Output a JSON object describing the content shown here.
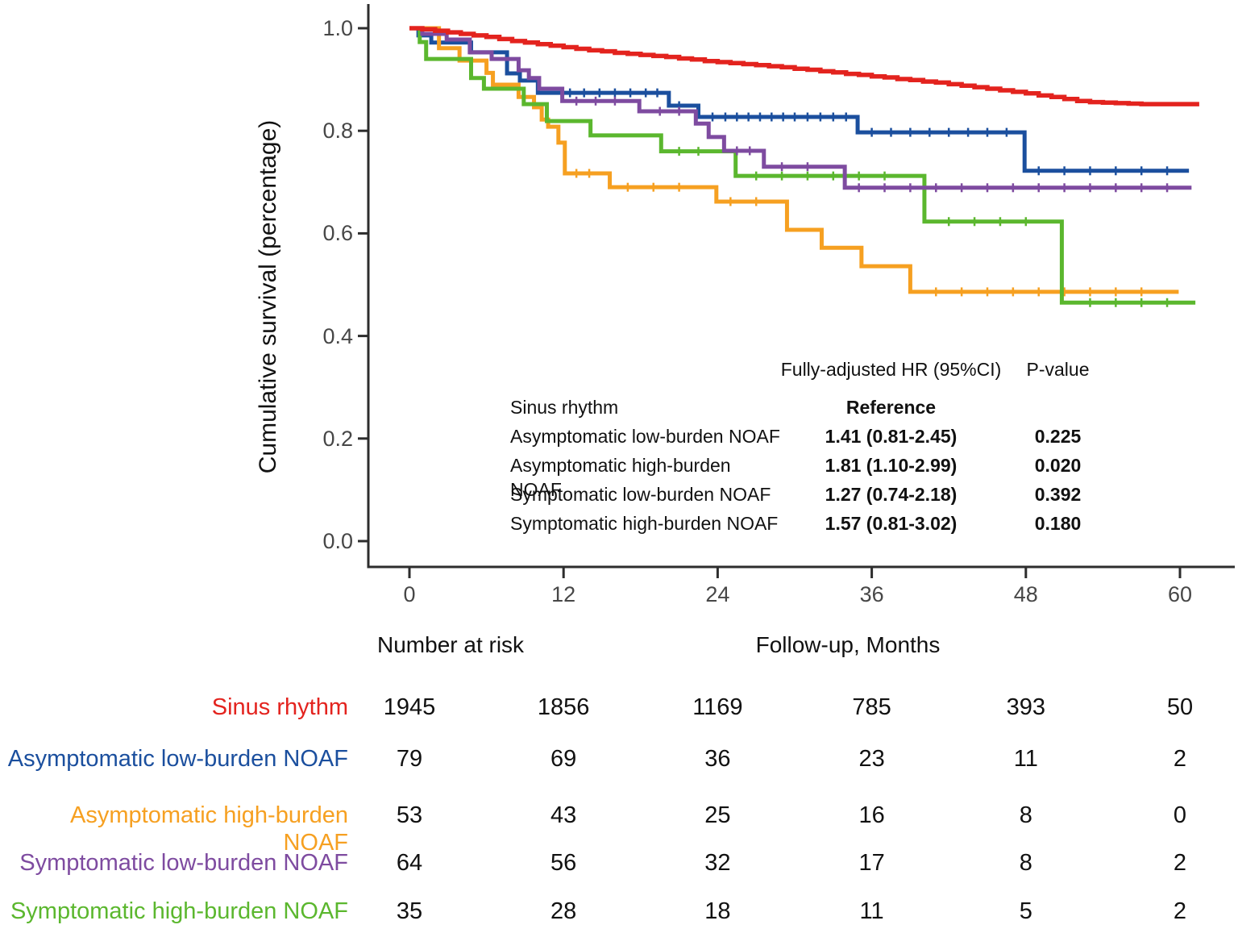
{
  "colors": {
    "axis": "#2d2d2d",
    "sinus": "#e3231e",
    "asym_low": "#1b4f9e",
    "asym_high": "#f6a021",
    "sym_low": "#7e4ba0",
    "sym_high": "#5bb72e"
  },
  "y_axis": {
    "label": "Cumulative survival (percentage)",
    "ticks": [
      {
        "label": "1.0",
        "value": 1.0
      },
      {
        "label": "0.8",
        "value": 0.8
      },
      {
        "label": "0.6",
        "value": 0.6
      },
      {
        "label": "0.4",
        "value": 0.4
      },
      {
        "label": "0.2",
        "value": 0.2
      },
      {
        "label": "0.0",
        "value": 0.0
      }
    ]
  },
  "x_axis": {
    "label": "Follow-up, Months",
    "ticks": [
      {
        "label": "0",
        "value": 0
      },
      {
        "label": "12",
        "value": 12
      },
      {
        "label": "24",
        "value": 24
      },
      {
        "label": "36",
        "value": 36
      },
      {
        "label": "48",
        "value": 48
      },
      {
        "label": "60",
        "value": 60
      }
    ]
  },
  "stats_table": {
    "hr_header": "Fully-adjusted HR (95%CI)",
    "p_header": "P-value",
    "rows": [
      {
        "label": "Sinus rhythm",
        "hr": "Reference",
        "p": ""
      },
      {
        "label": "Asymptomatic low-burden NOAF",
        "hr": "1.41 (0.81-2.45)",
        "p": "0.225"
      },
      {
        "label": "Asymptomatic high-burden NOAF",
        "hr": "1.81 (1.10-2.99)",
        "p": "0.020"
      },
      {
        "label": "Symptomatic low-burden NOAF",
        "hr": "1.27 (0.74-2.18)",
        "p": "0.392"
      },
      {
        "label": "Symptomatic high-burden NOAF",
        "hr": "1.57 (0.81-3.02)",
        "p": "0.180"
      }
    ]
  },
  "risk_table": {
    "title": "Number at risk",
    "time_points": [
      0,
      12,
      24,
      36,
      48,
      60
    ],
    "rows": [
      {
        "label": "Sinus rhythm",
        "series": "sinus",
        "counts": [
          "1945",
          "1856",
          "1169",
          "785",
          "393",
          "50"
        ]
      },
      {
        "label": "Asymptomatic low-burden NOAF",
        "series": "asym_low",
        "counts": [
          "79",
          "69",
          "36",
          "23",
          "11",
          "2"
        ]
      },
      {
        "label": "Asymptomatic high-burden NOAF",
        "series": "asym_high",
        "counts": [
          "53",
          "43",
          "25",
          "16",
          "8",
          "0"
        ]
      },
      {
        "label": "Symptomatic low-burden NOAF",
        "series": "sym_low",
        "counts": [
          "64",
          "56",
          "32",
          "17",
          "8",
          "2"
        ]
      },
      {
        "label": "Symptomatic high-burden NOAF",
        "series": "sym_high",
        "counts": [
          "35",
          "28",
          "18",
          "11",
          "5",
          "2"
        ]
      }
    ]
  },
  "chart_data": {
    "type": "line",
    "subtype": "kaplan-meier-step",
    "title": "",
    "xlabel": "Follow-up, Months",
    "ylabel": "Cumulative survival (percentage)",
    "xlim": [
      0,
      62
    ],
    "ylim": [
      0,
      1.02
    ],
    "x_ticks": [
      0,
      12,
      24,
      36,
      48,
      60
    ],
    "y_ticks": [
      0,
      0.2,
      0.4,
      0.6,
      0.8,
      1.0
    ],
    "grid": false,
    "legend_position": "none (identified via risk table and stats inset)",
    "series": [
      {
        "key": "sinus",
        "name": "Sinus rhythm",
        "color": "#e3231e",
        "line_width": 5.5,
        "end": 61.5,
        "points": [
          [
            0,
            1.0
          ],
          [
            1,
            0.998
          ],
          [
            2,
            0.995
          ],
          [
            3,
            0.992
          ],
          [
            4,
            0.989
          ],
          [
            5,
            0.986
          ],
          [
            6,
            0.983
          ],
          [
            7,
            0.979
          ],
          [
            8,
            0.975
          ],
          [
            9,
            0.972
          ],
          [
            10,
            0.969
          ],
          [
            11,
            0.966
          ],
          [
            12,
            0.963
          ],
          [
            13,
            0.96
          ],
          [
            14,
            0.957
          ],
          [
            15,
            0.955
          ],
          [
            16,
            0.952
          ],
          [
            17,
            0.95
          ],
          [
            18,
            0.948
          ],
          [
            19,
            0.946
          ],
          [
            20,
            0.944
          ],
          [
            21,
            0.941
          ],
          [
            22,
            0.939
          ],
          [
            23,
            0.936
          ],
          [
            24,
            0.934
          ],
          [
            25,
            0.932
          ],
          [
            26,
            0.93
          ],
          [
            27,
            0.928
          ],
          [
            28,
            0.926
          ],
          [
            29,
            0.924
          ],
          [
            30,
            0.921
          ],
          [
            31,
            0.919
          ],
          [
            32,
            0.916
          ],
          [
            33,
            0.914
          ],
          [
            34,
            0.911
          ],
          [
            35,
            0.909
          ],
          [
            36,
            0.906
          ],
          [
            37,
            0.904
          ],
          [
            38,
            0.901
          ],
          [
            39,
            0.899
          ],
          [
            40,
            0.896
          ],
          [
            41,
            0.894
          ],
          [
            42,
            0.891
          ],
          [
            43,
            0.888
          ],
          [
            44,
            0.885
          ],
          [
            45,
            0.882
          ],
          [
            46,
            0.879
          ],
          [
            47,
            0.876
          ],
          [
            48,
            0.873
          ],
          [
            49,
            0.869
          ],
          [
            50,
            0.866
          ],
          [
            51,
            0.862
          ],
          [
            52,
            0.858
          ],
          [
            53,
            0.856
          ],
          [
            54,
            0.855
          ],
          [
            55,
            0.854
          ],
          [
            56,
            0.853
          ],
          [
            57,
            0.852
          ],
          [
            58,
            0.852
          ],
          [
            59,
            0.852
          ],
          [
            60,
            0.852
          ]
        ],
        "censor_ticks": []
      },
      {
        "key": "asym_low",
        "name": "Asymptomatic low-burden NOAF",
        "color": "#1b4f9e",
        "line_width": 5,
        "end": 60.7,
        "points": [
          [
            0,
            1.0
          ],
          [
            0.7,
            0.986
          ],
          [
            1.7,
            0.972
          ],
          [
            4.8,
            0.953
          ],
          [
            7.6,
            0.912
          ],
          [
            8.6,
            0.898
          ],
          [
            10.0,
            0.874
          ],
          [
            20.2,
            0.849
          ],
          [
            22.5,
            0.827
          ],
          [
            34.9,
            0.797
          ],
          [
            47.9,
            0.722
          ]
        ],
        "censor_ticks": [
          12.5,
          13.6,
          14.8,
          16,
          17.2,
          18.4,
          19.3,
          21,
          23.6,
          24.6,
          25.5,
          26.4,
          27.3,
          28.2,
          29.1,
          30,
          31,
          32,
          33,
          34,
          36,
          37.5,
          39,
          40.5,
          42,
          43.5,
          45,
          46.5,
          49,
          51,
          53,
          55,
          57,
          59
        ]
      },
      {
        "key": "asym_high",
        "name": "Asymptomatic high-burden NOAF",
        "color": "#f6a021",
        "line_width": 5,
        "end": 59.9,
        "points": [
          [
            0,
            1.0
          ],
          [
            2.3,
            0.961
          ],
          [
            3.9,
            0.937
          ],
          [
            6.0,
            0.913
          ],
          [
            6.5,
            0.89
          ],
          [
            8.5,
            0.866
          ],
          [
            9.7,
            0.846
          ],
          [
            10.3,
            0.822
          ],
          [
            10.8,
            0.808
          ],
          [
            11.6,
            0.777
          ],
          [
            12.1,
            0.717
          ],
          [
            15.6,
            0.69
          ],
          [
            23.9,
            0.662
          ],
          [
            29.4,
            0.607
          ],
          [
            32.1,
            0.572
          ],
          [
            35.2,
            0.536
          ],
          [
            39.0,
            0.486
          ]
        ],
        "censor_ticks": [
          13,
          14,
          17,
          19,
          21,
          25,
          27,
          41,
          43,
          45,
          47,
          49,
          51,
          53,
          55,
          57
        ]
      },
      {
        "key": "sym_low",
        "name": "Symptomatic low-burden NOAF",
        "color": "#7e4ba0",
        "line_width": 5,
        "end": 60.9,
        "points": [
          [
            0,
            1.0
          ],
          [
            1.0,
            0.989
          ],
          [
            2.9,
            0.978
          ],
          [
            4.7,
            0.953
          ],
          [
            6.4,
            0.94
          ],
          [
            8.5,
            0.918
          ],
          [
            9.3,
            0.903
          ],
          [
            10.1,
            0.882
          ],
          [
            11.9,
            0.858
          ],
          [
            17.9,
            0.838
          ],
          [
            22.3,
            0.814
          ],
          [
            23.3,
            0.788
          ],
          [
            24.5,
            0.761
          ],
          [
            27.6,
            0.73
          ],
          [
            33.9,
            0.689
          ]
        ],
        "censor_ticks": [
          13,
          14.5,
          16,
          19.5,
          21,
          25.5,
          26.5,
          29,
          31,
          35,
          37,
          39,
          41,
          43,
          45,
          47,
          49,
          51,
          53,
          55,
          57,
          59
        ]
      },
      {
        "key": "sym_high",
        "name": "Symptomatic high-burden NOAF",
        "color": "#5bb72e",
        "line_width": 5,
        "end": 61.2,
        "points": [
          [
            0,
            1.0
          ],
          [
            0.8,
            0.973
          ],
          [
            1.3,
            0.94
          ],
          [
            4.8,
            0.903
          ],
          [
            5.8,
            0.882
          ],
          [
            8.9,
            0.852
          ],
          [
            10.7,
            0.819
          ],
          [
            14.1,
            0.791
          ],
          [
            19.6,
            0.76
          ],
          [
            25.4,
            0.712
          ],
          [
            40.1,
            0.623
          ],
          [
            50.8,
            0.465
          ]
        ],
        "censor_ticks": [
          21,
          22.5,
          27,
          29,
          31,
          33,
          35,
          37,
          42,
          44,
          46,
          48,
          53,
          55,
          57,
          59
        ]
      }
    ]
  }
}
